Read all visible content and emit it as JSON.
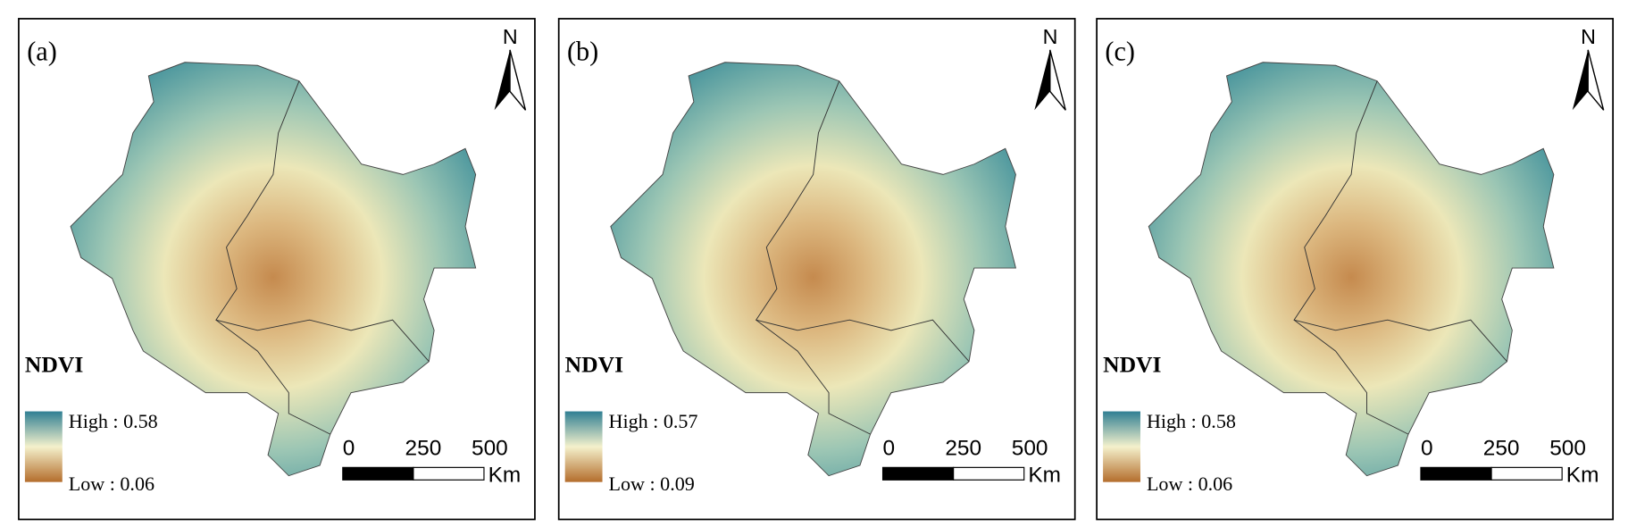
{
  "panels": [
    {
      "label": "(a)",
      "north": "N",
      "legend_title": "NDVI",
      "high": "High : 0.58",
      "low": "Low : 0.06",
      "scale_ticks": [
        "0",
        "250",
        "500"
      ],
      "scale_unit": "Km"
    },
    {
      "label": "(b)",
      "north": "N",
      "legend_title": "NDVI",
      "high": "High : 0.57",
      "low": "Low : 0.09",
      "scale_ticks": [
        "0",
        "250",
        "500"
      ],
      "scale_unit": "Km"
    },
    {
      "label": "(c)",
      "north": "N",
      "legend_title": "NDVI",
      "high": "High : 0.58",
      "low": "Low : 0.06",
      "scale_ticks": [
        "0",
        "250",
        "500"
      ],
      "scale_unit": "Km"
    }
  ]
}
